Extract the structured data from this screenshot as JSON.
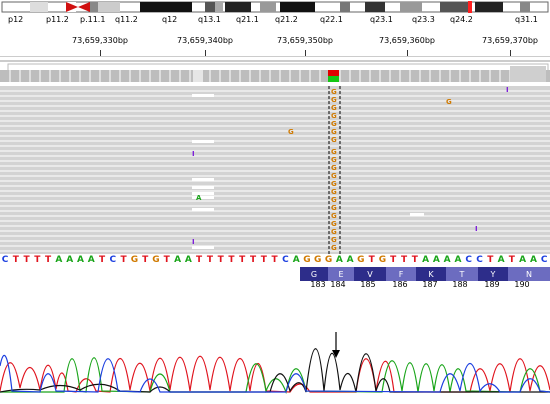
{
  "ideogram": {
    "bands": [
      "p12",
      "p11.2",
      "p.11.1",
      "q11.2",
      "q12",
      "q13.1",
      "q21.1",
      "q21.2",
      "q22.1",
      "q23.1",
      "q23.3",
      "q24.2",
      "q31.1"
    ]
  },
  "ruler": {
    "labels": [
      "73,659,330bp",
      "73,659,340bp",
      "73,659,350bp",
      "73,659,360bp",
      "73,659,370bp"
    ]
  },
  "reads": {
    "mismatch_base": "G",
    "other_mismatches": [
      "G",
      "G",
      "A",
      "I",
      "I",
      "I",
      "I"
    ]
  },
  "reference_sequence": "CTTTTAAAATCTGTGTAATTTTTTTTCAGGGAAGTGTTTAAAACCTATAAC",
  "translation": {
    "amino_acids": [
      "G",
      "E",
      "V",
      "F",
      "K",
      "T",
      "Y",
      "N"
    ],
    "positions": [
      "183",
      "184",
      "185",
      "186",
      "187",
      "188",
      "189",
      "190"
    ]
  },
  "chromatogram": {
    "arrow_label": "↓"
  },
  "colors": {
    "A": "#1aa51a",
    "C": "#1c3fe0",
    "G": "#d07a00",
    "T": "#e0141e",
    "read": "#c8c8c8",
    "translation_dark": "#2d2d8a",
    "translation_light": "#6c6cc0"
  }
}
